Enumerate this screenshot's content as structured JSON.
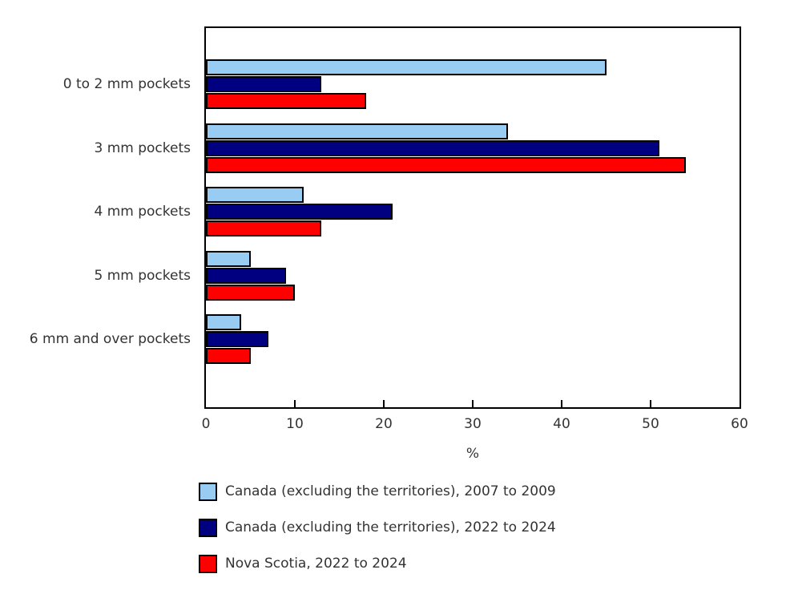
{
  "chart_data": {
    "type": "bar",
    "orientation": "horizontal",
    "title": "",
    "categories": [
      "0 to 2 mm pockets",
      "3 mm pockets",
      "4 mm pockets",
      "5 mm pockets",
      "6 mm and over pockets"
    ],
    "series": [
      {
        "name": "Canada (excluding the territories), 2007 to 2009",
        "color": "#99CCF2",
        "values": [
          45,
          34,
          11,
          5,
          4
        ]
      },
      {
        "name": "Canada (excluding the territories), 2022 to 2024",
        "color": "#000080",
        "values": [
          13,
          51,
          21,
          9,
          7
        ]
      },
      {
        "name": "Nova Scotia, 2022 to 2024",
        "color": "#FF0000",
        "values": [
          18,
          54,
          13,
          10,
          5
        ]
      }
    ],
    "xlabel": "%",
    "xlim": [
      0,
      60
    ],
    "xticks": [
      0,
      10,
      20,
      30,
      40,
      50,
      60
    ],
    "grid": false,
    "axis_color": "#000000",
    "legend_position": "bottom-left"
  }
}
